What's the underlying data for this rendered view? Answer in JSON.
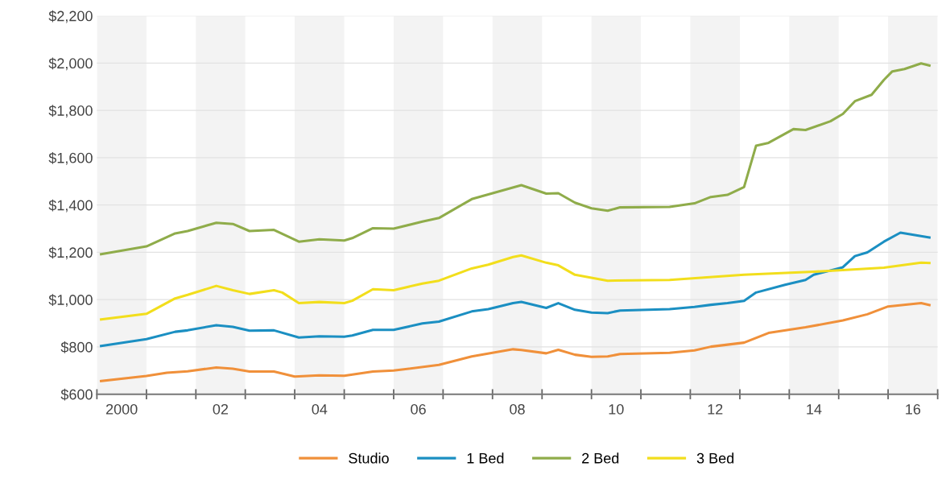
{
  "chart_data": {
    "type": "line",
    "xlim": [
      "2000-01-01",
      "2017-01-01"
    ],
    "ylim": [
      600,
      2200
    ],
    "xticks": [
      {
        "value": "2000-01-01",
        "label": null
      },
      {
        "value": "2000-07-02",
        "label": "2000"
      },
      {
        "value": "2001-01-01",
        "label": null
      },
      {
        "value": "2002-01-01",
        "label": null
      },
      {
        "value": "2002-07-02",
        "label": "02"
      },
      {
        "value": "2003-01-01",
        "label": null
      },
      {
        "value": "2004-01-01",
        "label": null
      },
      {
        "value": "2004-07-02",
        "label": "04"
      },
      {
        "value": "2005-01-01",
        "label": null
      },
      {
        "value": "2006-01-01",
        "label": null
      },
      {
        "value": "2006-07-02",
        "label": "06"
      },
      {
        "value": "2007-01-01",
        "label": null
      },
      {
        "value": "2008-01-01",
        "label": null
      },
      {
        "value": "2008-07-02",
        "label": "08"
      },
      {
        "value": "2009-01-01",
        "label": null
      },
      {
        "value": "2010-01-01",
        "label": null
      },
      {
        "value": "2010-07-02",
        "label": "10"
      },
      {
        "value": "2011-01-01",
        "label": null
      },
      {
        "value": "2012-01-01",
        "label": null
      },
      {
        "value": "2012-07-02",
        "label": "12"
      },
      {
        "value": "2013-01-01",
        "label": null
      },
      {
        "value": "2014-01-01",
        "label": null
      },
      {
        "value": "2014-07-02",
        "label": "14"
      },
      {
        "value": "2015-01-01",
        "label": null
      },
      {
        "value": "2016-01-01",
        "label": null
      },
      {
        "value": "2016-07-02",
        "label": "16"
      },
      {
        "value": "2017-01-01",
        "label": null
      }
    ],
    "yticks": [
      {
        "value": 600,
        "label": "$600"
      },
      {
        "value": 800,
        "label": "$800"
      },
      {
        "value": 1000,
        "label": "$1,000"
      },
      {
        "value": 1200,
        "label": "$1,200"
      },
      {
        "value": 1400,
        "label": "$1,400"
      },
      {
        "value": 1600,
        "label": "$1,600"
      },
      {
        "value": 1800,
        "label": "$1,800"
      },
      {
        "value": 2000,
        "label": "$2,000"
      },
      {
        "value": 2200,
        "label": "$2,200"
      }
    ],
    "grid": "y",
    "legend": "bottom",
    "marker": "none",
    "line_style": "solid",
    "bands": [
      {
        "axis": "x",
        "from": "2000",
        "to": "2001",
        "color": "#f3f3f3"
      },
      {
        "axis": "x",
        "from": "2002",
        "to": "2003",
        "color": "#f3f3f3"
      },
      {
        "axis": "x",
        "from": "2004",
        "to": "2005",
        "color": "#f3f3f3"
      },
      {
        "axis": "x",
        "from": "2006",
        "to": "2007",
        "color": "#f3f3f3"
      },
      {
        "axis": "x",
        "from": "2008",
        "to": "2009",
        "color": "#f3f3f3"
      },
      {
        "axis": "x",
        "from": "2010",
        "to": "2011",
        "color": "#f3f3f3"
      },
      {
        "axis": "x",
        "from": "2012",
        "to": "2013",
        "color": "#f3f3f3"
      },
      {
        "axis": "x",
        "from": "2014",
        "to": "2015",
        "color": "#f3f3f3"
      },
      {
        "axis": "x",
        "from": "2016",
        "to": "2017",
        "color": "#f3f3f3"
      }
    ],
    "series": [
      {
        "name": "Studio",
        "color": "#f0903a",
        "x": [
          "2000-02",
          "2001-01",
          "2001-06",
          "2001-11",
          "2002-06",
          "2002-10",
          "2003-02",
          "2003-08",
          "2004-01",
          "2004-07",
          "2005-01",
          "2005-08",
          "2006-01",
          "2006-12",
          "2007-08",
          "2008-06",
          "2008-08",
          "2009-02",
          "2009-05",
          "2009-09",
          "2010-01",
          "2010-05",
          "2010-08",
          "2011-08",
          "2012-02",
          "2012-06",
          "2013-02",
          "2013-08",
          "2014-05",
          "2015-02",
          "2015-08",
          "2016-01",
          "2016-09",
          "2016-11"
        ],
        "values": [
          656,
          677,
          691,
          697,
          713,
          708,
          696,
          696,
          675,
          680,
          678,
          696,
          700,
          724,
          760,
          790,
          787,
          773,
          788,
          767,
          758,
          760,
          770,
          775,
          785,
          801,
          818,
          859,
          883,
          912,
          938,
          971,
          985,
          977
        ]
      },
      {
        "name": "1 Bed",
        "color": "#1b8fc2",
        "x": [
          "2000-02",
          "2001-01",
          "2001-08",
          "2001-11",
          "2002-06",
          "2002-10",
          "2003-02",
          "2003-08",
          "2004-02",
          "2004-07",
          "2005-01",
          "2005-03",
          "2005-08",
          "2006-01",
          "2006-08",
          "2006-12",
          "2007-08",
          "2007-12",
          "2008-06",
          "2008-08",
          "2009-02",
          "2009-05",
          "2009-09",
          "2010-01",
          "2010-05",
          "2010-08",
          "2011-08",
          "2012-02",
          "2012-06",
          "2012-10",
          "2013-02",
          "2013-05",
          "2013-12",
          "2014-05",
          "2014-07",
          "2015-02",
          "2015-05",
          "2015-08",
          "2015-12",
          "2016-04",
          "2016-11"
        ],
        "values": [
          804,
          833,
          864,
          870,
          892,
          885,
          869,
          870,
          840,
          845,
          843,
          848,
          872,
          872,
          899,
          907,
          950,
          960,
          985,
          990,
          965,
          985,
          957,
          945,
          943,
          954,
          960,
          969,
          978,
          985,
          995,
          1030,
          1063,
          1083,
          1105,
          1137,
          1184,
          1200,
          1245,
          1283,
          1263
        ]
      },
      {
        "name": "2 Bed",
        "color": "#8fac4a",
        "x": [
          "2000-02",
          "2001-01",
          "2001-08",
          "2001-11",
          "2002-06",
          "2002-10",
          "2003-02",
          "2003-08",
          "2004-02",
          "2004-07",
          "2005-01",
          "2005-03",
          "2005-08",
          "2006-01",
          "2006-08",
          "2006-12",
          "2007-08",
          "2007-12",
          "2008-08",
          "2009-02",
          "2009-05",
          "2009-09",
          "2010-01",
          "2010-05",
          "2010-08",
          "2011-08",
          "2012-02",
          "2012-06",
          "2012-10",
          "2013-02",
          "2013-05",
          "2013-08",
          "2014-02",
          "2014-05",
          "2014-11",
          "2015-02",
          "2015-05",
          "2015-09",
          "2015-12",
          "2016-02",
          "2016-05",
          "2016-09",
          "2016-11"
        ],
        "values": [
          1192,
          1225,
          1280,
          1290,
          1325,
          1320,
          1290,
          1295,
          1245,
          1255,
          1250,
          1260,
          1302,
          1300,
          1330,
          1345,
          1425,
          1445,
          1484,
          1448,
          1450,
          1410,
          1386,
          1376,
          1390,
          1392,
          1407,
          1434,
          1443,
          1476,
          1651,
          1663,
          1721,
          1717,
          1754,
          1785,
          1839,
          1866,
          1929,
          1965,
          1975,
          1999,
          1990
        ]
      },
      {
        "name": "3 Bed",
        "color": "#f2de1c",
        "x": [
          "2000-02",
          "2001-01",
          "2001-08",
          "2001-11",
          "2002-06",
          "2002-10",
          "2003-02",
          "2003-08",
          "2003-10",
          "2004-02",
          "2004-07",
          "2005-01",
          "2005-03",
          "2005-08",
          "2006-01",
          "2006-08",
          "2006-12",
          "2007-08",
          "2007-12",
          "2008-06",
          "2008-08",
          "2009-02",
          "2009-05",
          "2009-09",
          "2010-05",
          "2011-08",
          "2013-02",
          "2014-07",
          "2015-02",
          "2015-12",
          "2016-09",
          "2016-11"
        ],
        "values": [
          916,
          940,
          1005,
          1020,
          1058,
          1040,
          1024,
          1040,
          1030,
          985,
          990,
          985,
          995,
          1044,
          1040,
          1068,
          1080,
          1132,
          1148,
          1180,
          1187,
          1156,
          1145,
          1105,
          1080,
          1083,
          1105,
          1118,
          1125,
          1135,
          1156,
          1155
        ]
      }
    ]
  }
}
